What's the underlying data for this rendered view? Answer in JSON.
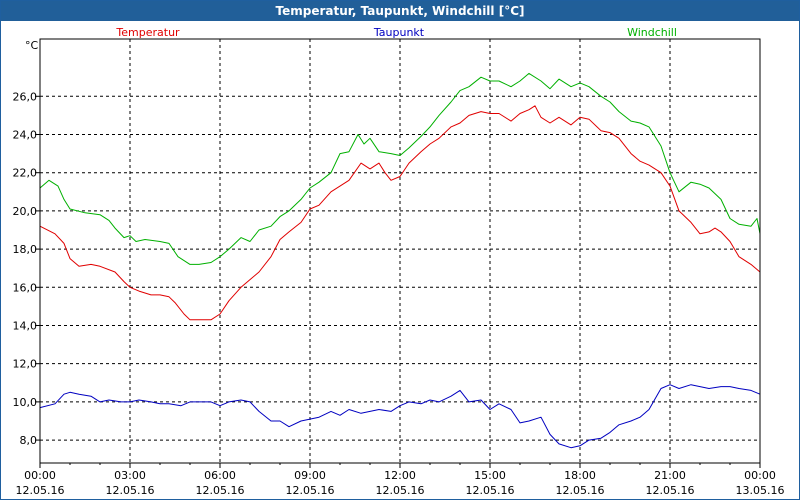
{
  "window": {
    "title": "Temperatur, Taupunkt, Windchill [°C]"
  },
  "chart_data": {
    "type": "line",
    "title": "Temperatur, Taupunkt, Windchill [°C]",
    "ylabel": "°C",
    "ylim": [
      6.8,
      29.0
    ],
    "xlim": [
      0,
      24
    ],
    "grid": true,
    "legend_placement": "top",
    "y_ticks": [
      8,
      10,
      12,
      14,
      16,
      18,
      20,
      22,
      24,
      26
    ],
    "y_tick_labels": [
      "8,0",
      "10,0",
      "12,0",
      "14,0",
      "16,0",
      "18,0",
      "20,0",
      "22,0",
      "24,0",
      "26,0"
    ],
    "x_ticks": [
      0,
      3,
      6,
      9,
      12,
      15,
      18,
      21,
      24
    ],
    "x_tick_labels": [
      {
        "time": "00:00",
        "date": "12.05.16"
      },
      {
        "time": "03:00",
        "date": "12.05.16"
      },
      {
        "time": "06:00",
        "date": "12.05.16"
      },
      {
        "time": "09:00",
        "date": "12.05.16"
      },
      {
        "time": "12:00",
        "date": "12.05.16"
      },
      {
        "time": "15:00",
        "date": "12.05.16"
      },
      {
        "time": "18:00",
        "date": "12.05.16"
      },
      {
        "time": "21:00",
        "date": "12.05.16"
      },
      {
        "time": "00:00",
        "date": "13.05.16"
      }
    ],
    "series": [
      {
        "name": "Temperatur",
        "color": "#e00000",
        "points": [
          [
            0.0,
            19.2
          ],
          [
            0.5,
            18.8
          ],
          [
            0.8,
            18.3
          ],
          [
            1.0,
            17.5
          ],
          [
            1.3,
            17.1
          ],
          [
            1.7,
            17.2
          ],
          [
            2.0,
            17.1
          ],
          [
            2.5,
            16.8
          ],
          [
            2.8,
            16.3
          ],
          [
            3.0,
            16.0
          ],
          [
            3.3,
            15.8
          ],
          [
            3.7,
            15.6
          ],
          [
            4.0,
            15.6
          ],
          [
            4.3,
            15.5
          ],
          [
            4.5,
            15.2
          ],
          [
            4.8,
            14.6
          ],
          [
            5.0,
            14.3
          ],
          [
            5.3,
            14.3
          ],
          [
            5.7,
            14.3
          ],
          [
            6.0,
            14.6
          ],
          [
            6.3,
            15.3
          ],
          [
            6.7,
            16.0
          ],
          [
            7.0,
            16.4
          ],
          [
            7.3,
            16.8
          ],
          [
            7.7,
            17.6
          ],
          [
            8.0,
            18.5
          ],
          [
            8.3,
            18.9
          ],
          [
            8.7,
            19.4
          ],
          [
            9.0,
            20.1
          ],
          [
            9.3,
            20.3
          ],
          [
            9.7,
            21.0
          ],
          [
            10.0,
            21.3
          ],
          [
            10.3,
            21.6
          ],
          [
            10.7,
            22.5
          ],
          [
            11.0,
            22.2
          ],
          [
            11.3,
            22.5
          ],
          [
            11.5,
            22.0
          ],
          [
            11.7,
            21.6
          ],
          [
            12.0,
            21.8
          ],
          [
            12.3,
            22.5
          ],
          [
            12.7,
            23.1
          ],
          [
            13.0,
            23.5
          ],
          [
            13.3,
            23.8
          ],
          [
            13.7,
            24.4
          ],
          [
            14.0,
            24.6
          ],
          [
            14.3,
            25.0
          ],
          [
            14.7,
            25.2
          ],
          [
            15.0,
            25.1
          ],
          [
            15.3,
            25.1
          ],
          [
            15.7,
            24.7
          ],
          [
            16.0,
            25.1
          ],
          [
            16.3,
            25.3
          ],
          [
            16.5,
            25.5
          ],
          [
            16.7,
            24.9
          ],
          [
            17.0,
            24.6
          ],
          [
            17.3,
            24.9
          ],
          [
            17.7,
            24.5
          ],
          [
            18.0,
            24.9
          ],
          [
            18.3,
            24.8
          ],
          [
            18.7,
            24.2
          ],
          [
            19.0,
            24.1
          ],
          [
            19.3,
            23.8
          ],
          [
            19.7,
            23.0
          ],
          [
            20.0,
            22.6
          ],
          [
            20.3,
            22.4
          ],
          [
            20.7,
            22.0
          ],
          [
            21.0,
            21.3
          ],
          [
            21.3,
            20.0
          ],
          [
            21.7,
            19.4
          ],
          [
            22.0,
            18.8
          ],
          [
            22.3,
            18.9
          ],
          [
            22.5,
            19.1
          ],
          [
            22.7,
            18.9
          ],
          [
            23.0,
            18.4
          ],
          [
            23.3,
            17.6
          ],
          [
            23.7,
            17.2
          ],
          [
            24.0,
            16.8
          ]
        ]
      },
      {
        "name": "Taupunkt",
        "color": "#0000c0",
        "points": [
          [
            0.0,
            9.7
          ],
          [
            0.5,
            9.9
          ],
          [
            0.8,
            10.4
          ],
          [
            1.0,
            10.5
          ],
          [
            1.3,
            10.4
          ],
          [
            1.7,
            10.3
          ],
          [
            2.0,
            10.0
          ],
          [
            2.3,
            10.1
          ],
          [
            2.7,
            10.0
          ],
          [
            3.0,
            10.0
          ],
          [
            3.3,
            10.1
          ],
          [
            3.7,
            10.0
          ],
          [
            4.0,
            9.9
          ],
          [
            4.3,
            9.9
          ],
          [
            4.7,
            9.8
          ],
          [
            5.0,
            10.0
          ],
          [
            5.3,
            10.0
          ],
          [
            5.7,
            10.0
          ],
          [
            6.0,
            9.8
          ],
          [
            6.3,
            10.0
          ],
          [
            6.7,
            10.1
          ],
          [
            7.0,
            10.0
          ],
          [
            7.3,
            9.5
          ],
          [
            7.7,
            9.0
          ],
          [
            8.0,
            9.0
          ],
          [
            8.3,
            8.7
          ],
          [
            8.7,
            9.0
          ],
          [
            9.0,
            9.1
          ],
          [
            9.3,
            9.2
          ],
          [
            9.7,
            9.5
          ],
          [
            10.0,
            9.3
          ],
          [
            10.3,
            9.6
          ],
          [
            10.7,
            9.4
          ],
          [
            11.0,
            9.5
          ],
          [
            11.3,
            9.6
          ],
          [
            11.7,
            9.5
          ],
          [
            12.0,
            9.8
          ],
          [
            12.3,
            10.0
          ],
          [
            12.7,
            9.9
          ],
          [
            13.0,
            10.1
          ],
          [
            13.3,
            10.0
          ],
          [
            13.7,
            10.3
          ],
          [
            14.0,
            10.6
          ],
          [
            14.3,
            10.0
          ],
          [
            14.7,
            10.1
          ],
          [
            15.0,
            9.6
          ],
          [
            15.3,
            9.9
          ],
          [
            15.7,
            9.6
          ],
          [
            16.0,
            8.9
          ],
          [
            16.3,
            9.0
          ],
          [
            16.7,
            9.2
          ],
          [
            17.0,
            8.3
          ],
          [
            17.3,
            7.8
          ],
          [
            17.7,
            7.6
          ],
          [
            18.0,
            7.7
          ],
          [
            18.3,
            8.0
          ],
          [
            18.7,
            8.1
          ],
          [
            19.0,
            8.4
          ],
          [
            19.3,
            8.8
          ],
          [
            19.7,
            9.0
          ],
          [
            20.0,
            9.2
          ],
          [
            20.3,
            9.6
          ],
          [
            20.7,
            10.7
          ],
          [
            21.0,
            10.9
          ],
          [
            21.3,
            10.7
          ],
          [
            21.7,
            10.9
          ],
          [
            22.0,
            10.8
          ],
          [
            22.3,
            10.7
          ],
          [
            22.7,
            10.8
          ],
          [
            23.0,
            10.8
          ],
          [
            23.3,
            10.7
          ],
          [
            23.7,
            10.6
          ],
          [
            24.0,
            10.4
          ]
        ]
      },
      {
        "name": "Windchill",
        "color": "#00b000",
        "points": [
          [
            0.0,
            21.2
          ],
          [
            0.3,
            21.6
          ],
          [
            0.6,
            21.3
          ],
          [
            0.8,
            20.6
          ],
          [
            1.0,
            20.1
          ],
          [
            1.5,
            19.9
          ],
          [
            2.0,
            19.8
          ],
          [
            2.3,
            19.5
          ],
          [
            2.5,
            19.1
          ],
          [
            2.8,
            18.6
          ],
          [
            3.0,
            18.7
          ],
          [
            3.2,
            18.4
          ],
          [
            3.5,
            18.5
          ],
          [
            4.0,
            18.4
          ],
          [
            4.3,
            18.3
          ],
          [
            4.6,
            17.6
          ],
          [
            5.0,
            17.2
          ],
          [
            5.3,
            17.2
          ],
          [
            5.7,
            17.3
          ],
          [
            6.0,
            17.6
          ],
          [
            6.3,
            18.0
          ],
          [
            6.7,
            18.6
          ],
          [
            7.0,
            18.4
          ],
          [
            7.3,
            19.0
          ],
          [
            7.7,
            19.2
          ],
          [
            8.0,
            19.7
          ],
          [
            8.3,
            20.0
          ],
          [
            8.7,
            20.6
          ],
          [
            9.0,
            21.2
          ],
          [
            9.3,
            21.5
          ],
          [
            9.7,
            22.0
          ],
          [
            10.0,
            23.0
          ],
          [
            10.3,
            23.1
          ],
          [
            10.6,
            24.0
          ],
          [
            10.8,
            23.5
          ],
          [
            11.0,
            23.8
          ],
          [
            11.3,
            23.1
          ],
          [
            11.7,
            23.0
          ],
          [
            12.0,
            22.9
          ],
          [
            12.3,
            23.3
          ],
          [
            12.7,
            23.9
          ],
          [
            13.0,
            24.4
          ],
          [
            13.3,
            25.0
          ],
          [
            13.7,
            25.7
          ],
          [
            14.0,
            26.3
          ],
          [
            14.3,
            26.5
          ],
          [
            14.7,
            27.0
          ],
          [
            15.0,
            26.8
          ],
          [
            15.3,
            26.8
          ],
          [
            15.7,
            26.5
          ],
          [
            16.0,
            26.8
          ],
          [
            16.3,
            27.2
          ],
          [
            16.7,
            26.8
          ],
          [
            17.0,
            26.4
          ],
          [
            17.3,
            26.9
          ],
          [
            17.7,
            26.5
          ],
          [
            18.0,
            26.7
          ],
          [
            18.3,
            26.5
          ],
          [
            18.7,
            26.0
          ],
          [
            19.0,
            25.7
          ],
          [
            19.3,
            25.2
          ],
          [
            19.7,
            24.7
          ],
          [
            20.0,
            24.6
          ],
          [
            20.3,
            24.4
          ],
          [
            20.7,
            23.4
          ],
          [
            21.0,
            22.0
          ],
          [
            21.3,
            21.0
          ],
          [
            21.7,
            21.5
          ],
          [
            22.0,
            21.4
          ],
          [
            22.3,
            21.2
          ],
          [
            22.7,
            20.6
          ],
          [
            23.0,
            19.6
          ],
          [
            23.3,
            19.3
          ],
          [
            23.7,
            19.2
          ],
          [
            23.9,
            19.6
          ],
          [
            24.0,
            18.8
          ]
        ]
      }
    ]
  }
}
